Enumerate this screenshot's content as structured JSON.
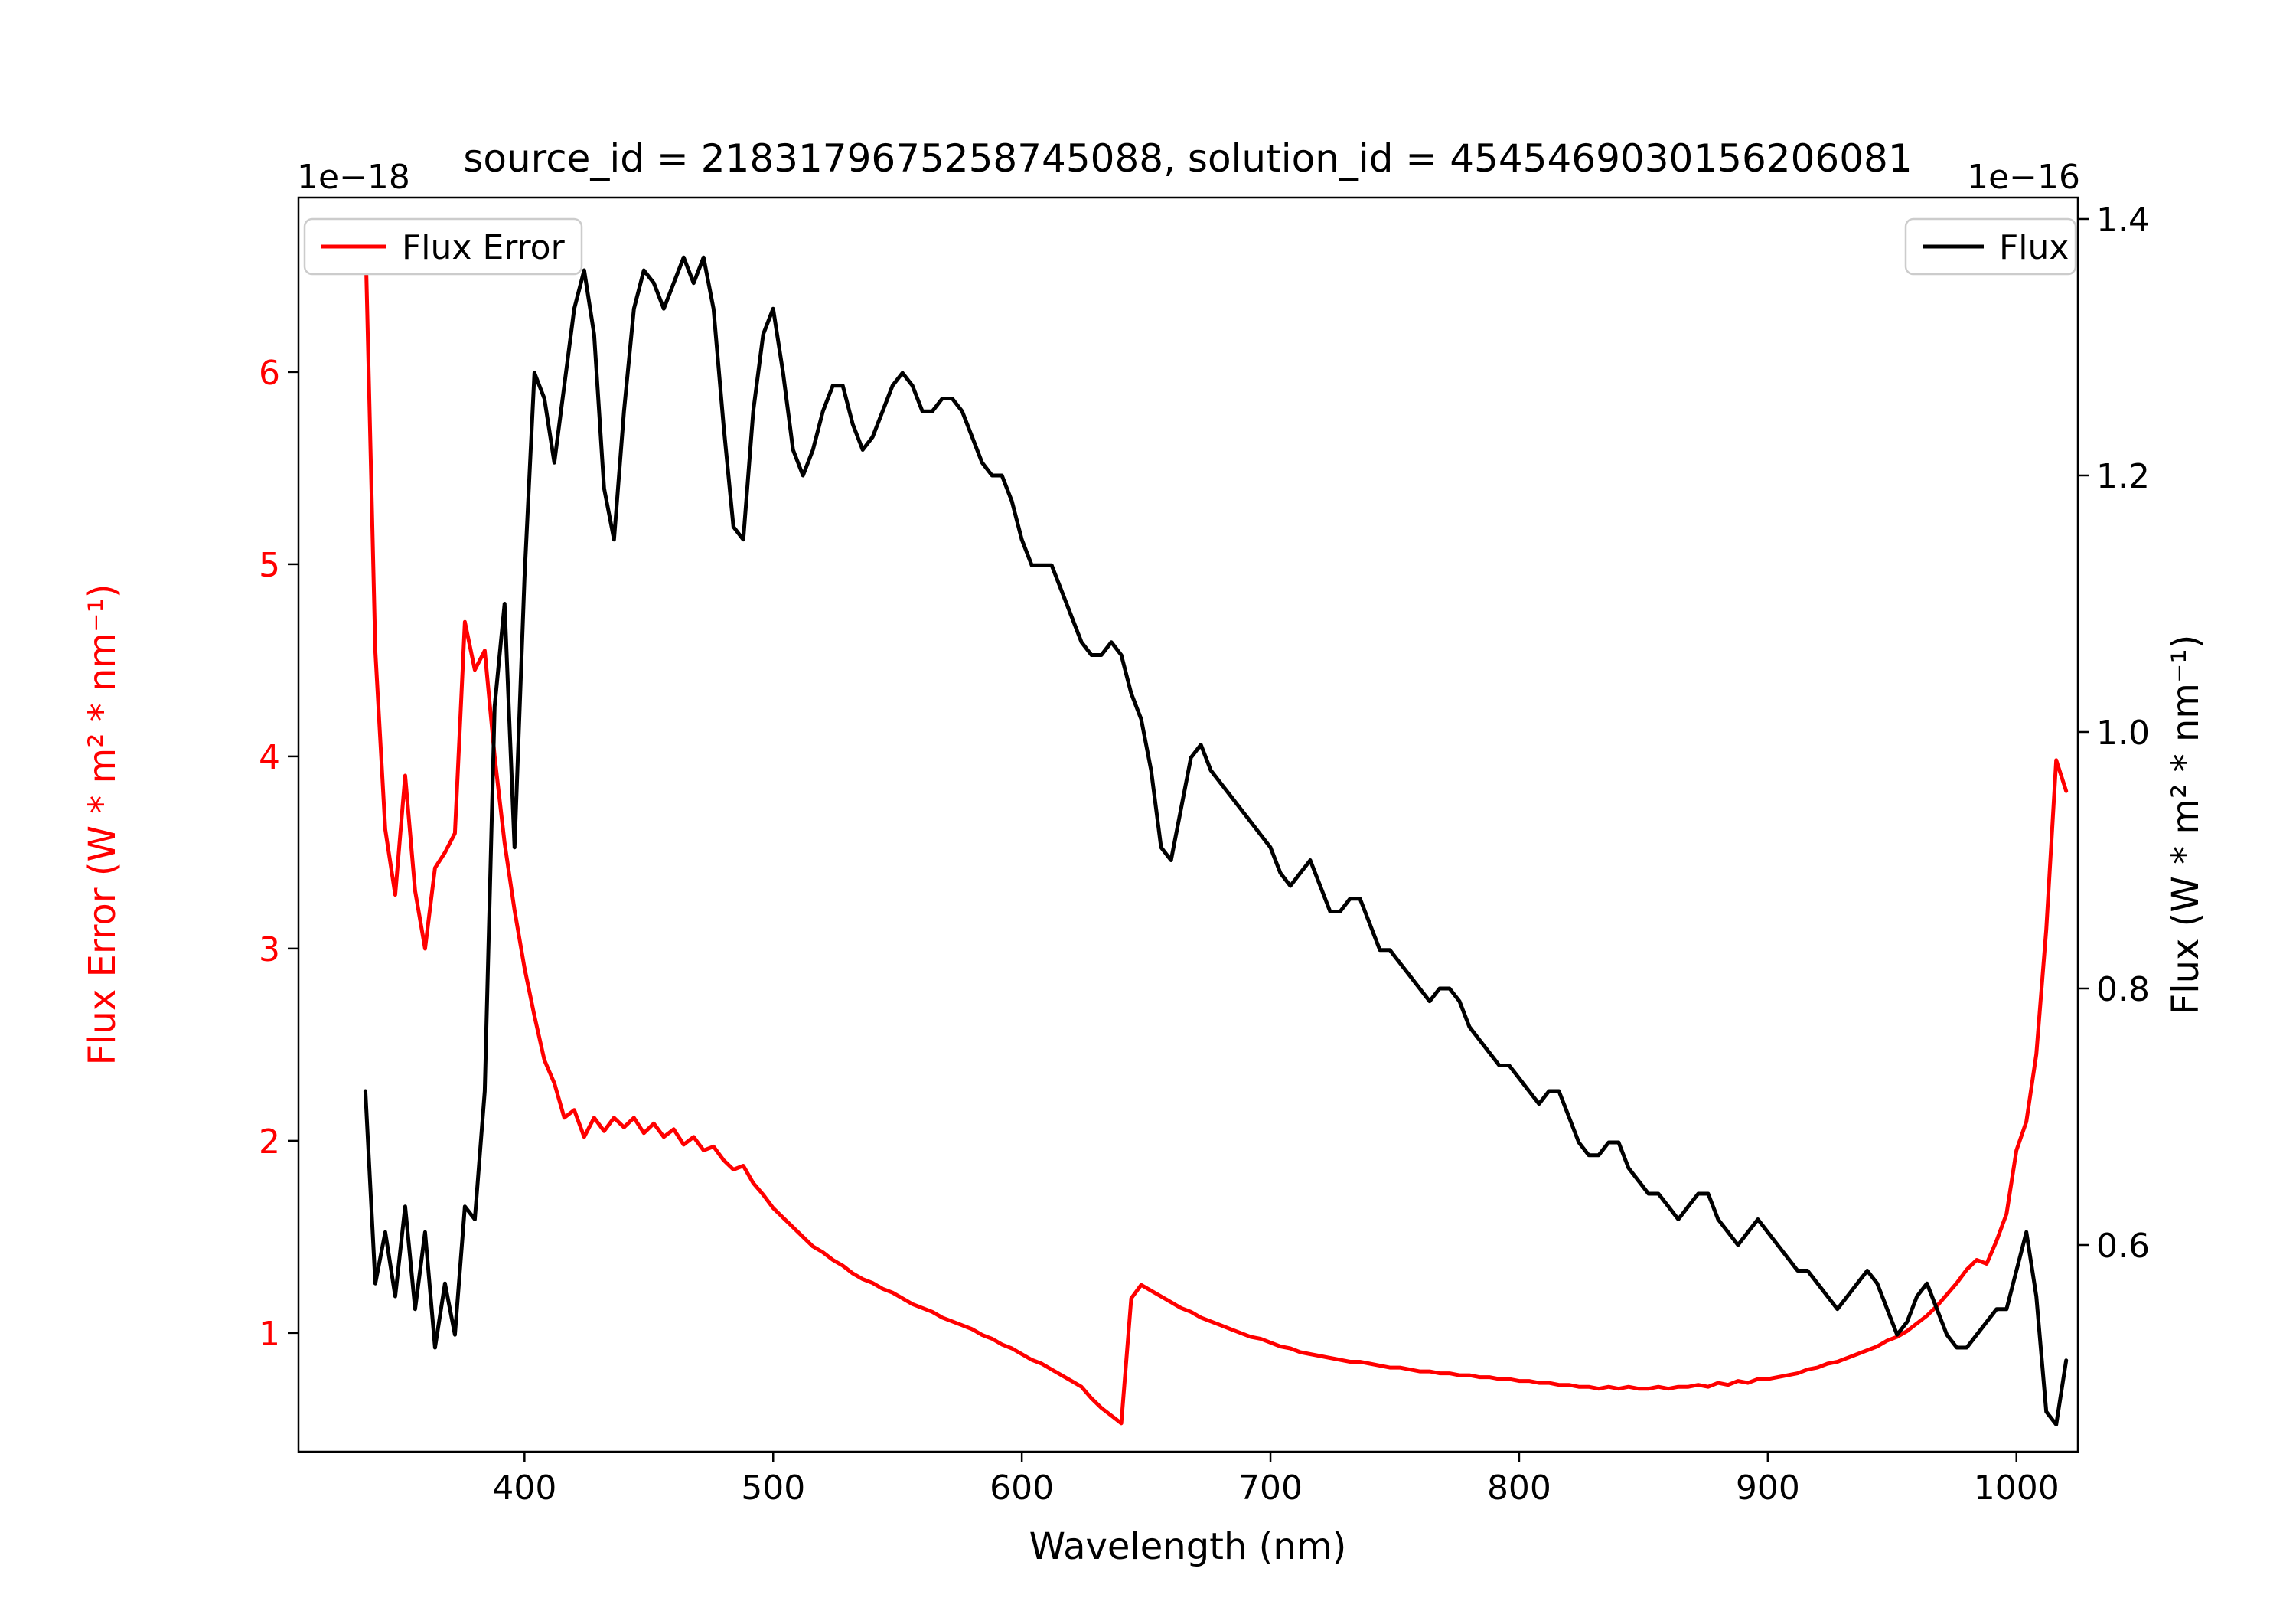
{
  "chart_data": {
    "type": "line",
    "title": "source_id = 2183179675258745088, solution_id = 4545469030156206081",
    "xlabel": "Wavelength (nm)",
    "ylabel_left": "Flux Error (W * m² * nm⁻¹)",
    "ylabel_right": "Flux (W * m² * nm⁻¹)",
    "offset_text_left": "1e−18",
    "offset_text_right": "1e−16",
    "xlim": [
      309.1,
      1024.7
    ],
    "ylim_left": [
      0.382,
      6.908
    ],
    "ylim_right": [
      0.4388,
      1.4167
    ],
    "x_ticks": [
      400,
      500,
      600,
      700,
      800,
      900,
      1000
    ],
    "y_ticks_left": [
      "1",
      "2",
      "3",
      "4",
      "5",
      "6"
    ],
    "y_ticks_right": [
      "0.6",
      "0.8",
      "1.0",
      "1.2",
      "1.4"
    ],
    "grid": false,
    "x_units": "nm",
    "left_units_scale": "1e-18",
    "right_units_scale": "1e-16",
    "x": [
      336,
      340,
      344,
      348,
      352,
      356,
      360,
      364,
      368,
      372,
      376,
      380,
      384,
      388,
      392,
      396,
      400,
      404,
      408,
      412,
      416,
      420,
      424,
      428,
      432,
      436,
      440,
      444,
      448,
      452,
      456,
      460,
      464,
      468,
      472,
      476,
      480,
      484,
      488,
      492,
      496,
      500,
      504,
      508,
      512,
      516,
      520,
      524,
      528,
      532,
      536,
      540,
      544,
      548,
      552,
      556,
      560,
      564,
      568,
      572,
      576,
      580,
      584,
      588,
      592,
      596,
      600,
      604,
      608,
      612,
      616,
      620,
      624,
      628,
      632,
      636,
      640,
      644,
      648,
      652,
      656,
      660,
      664,
      668,
      672,
      676,
      680,
      684,
      688,
      692,
      696,
      700,
      704,
      708,
      712,
      716,
      720,
      724,
      728,
      732,
      736,
      740,
      744,
      748,
      752,
      756,
      760,
      764,
      768,
      772,
      776,
      780,
      784,
      788,
      792,
      796,
      800,
      804,
      808,
      812,
      816,
      820,
      824,
      828,
      832,
      836,
      840,
      844,
      848,
      852,
      856,
      860,
      864,
      868,
      872,
      876,
      880,
      884,
      888,
      892,
      896,
      900,
      904,
      908,
      912,
      916,
      920,
      924,
      928,
      932,
      936,
      940,
      944,
      948,
      952,
      956,
      960,
      964,
      968,
      972,
      976,
      980,
      984,
      988,
      992,
      996,
      1000,
      1004,
      1008,
      1012,
      1016,
      1020
    ],
    "series": [
      {
        "name": "Flux Error",
        "axis": "left",
        "color": "#ff0000",
        "legend_loc": "upper left",
        "values": [
          6.72,
          4.55,
          3.62,
          3.28,
          3.9,
          3.3,
          3.0,
          3.42,
          3.5,
          3.6,
          4.7,
          4.45,
          4.55,
          4.0,
          3.55,
          3.2,
          2.9,
          2.65,
          2.42,
          2.3,
          2.12,
          2.16,
          2.02,
          2.12,
          2.05,
          2.12,
          2.07,
          2.12,
          2.04,
          2.09,
          2.02,
          2.06,
          1.98,
          2.02,
          1.95,
          1.97,
          1.9,
          1.85,
          1.87,
          1.78,
          1.72,
          1.65,
          1.6,
          1.55,
          1.5,
          1.45,
          1.42,
          1.38,
          1.35,
          1.31,
          1.28,
          1.26,
          1.23,
          1.21,
          1.18,
          1.15,
          1.13,
          1.11,
          1.08,
          1.06,
          1.04,
          1.02,
          0.99,
          0.97,
          0.94,
          0.92,
          0.89,
          0.86,
          0.84,
          0.81,
          0.78,
          0.75,
          0.72,
          0.66,
          0.61,
          0.57,
          0.53,
          1.18,
          1.25,
          1.22,
          1.19,
          1.16,
          1.13,
          1.11,
          1.08,
          1.06,
          1.04,
          1.02,
          1.0,
          0.98,
          0.97,
          0.95,
          0.93,
          0.92,
          0.9,
          0.89,
          0.88,
          0.87,
          0.86,
          0.85,
          0.85,
          0.84,
          0.83,
          0.82,
          0.82,
          0.81,
          0.8,
          0.8,
          0.79,
          0.79,
          0.78,
          0.78,
          0.77,
          0.77,
          0.76,
          0.76,
          0.75,
          0.75,
          0.74,
          0.74,
          0.73,
          0.73,
          0.72,
          0.72,
          0.71,
          0.72,
          0.71,
          0.72,
          0.71,
          0.71,
          0.72,
          0.71,
          0.72,
          0.72,
          0.73,
          0.72,
          0.74,
          0.73,
          0.75,
          0.74,
          0.76,
          0.76,
          0.77,
          0.78,
          0.79,
          0.81,
          0.82,
          0.84,
          0.85,
          0.87,
          0.89,
          0.91,
          0.93,
          0.96,
          0.98,
          1.01,
          1.05,
          1.09,
          1.14,
          1.2,
          1.26,
          1.33,
          1.38,
          1.36,
          1.48,
          1.62,
          1.95,
          2.1,
          2.45,
          3.1,
          3.98,
          3.82
        ]
      },
      {
        "name": "Flux",
        "axis": "right",
        "color": "#000000",
        "legend_loc": "upper right",
        "values": [
          0.72,
          0.57,
          0.61,
          0.56,
          0.63,
          0.55,
          0.61,
          0.52,
          0.57,
          0.53,
          0.63,
          0.62,
          0.72,
          1.02,
          1.1,
          0.91,
          1.12,
          1.28,
          1.26,
          1.21,
          1.27,
          1.33,
          1.36,
          1.31,
          1.19,
          1.15,
          1.25,
          1.33,
          1.36,
          1.35,
          1.33,
          1.35,
          1.37,
          1.35,
          1.37,
          1.33,
          1.24,
          1.16,
          1.15,
          1.25,
          1.31,
          1.33,
          1.28,
          1.22,
          1.2,
          1.22,
          1.25,
          1.27,
          1.27,
          1.24,
          1.22,
          1.23,
          1.25,
          1.27,
          1.28,
          1.27,
          1.25,
          1.25,
          1.26,
          1.26,
          1.25,
          1.23,
          1.21,
          1.2,
          1.2,
          1.18,
          1.15,
          1.13,
          1.13,
          1.13,
          1.11,
          1.09,
          1.07,
          1.06,
          1.06,
          1.07,
          1.06,
          1.03,
          1.01,
          0.97,
          0.91,
          0.9,
          0.94,
          0.98,
          0.99,
          0.97,
          0.96,
          0.95,
          0.94,
          0.93,
          0.92,
          0.91,
          0.89,
          0.88,
          0.89,
          0.9,
          0.88,
          0.86,
          0.86,
          0.87,
          0.87,
          0.85,
          0.83,
          0.83,
          0.82,
          0.81,
          0.8,
          0.79,
          0.8,
          0.8,
          0.79,
          0.77,
          0.76,
          0.75,
          0.74,
          0.74,
          0.73,
          0.72,
          0.71,
          0.72,
          0.72,
          0.7,
          0.68,
          0.67,
          0.67,
          0.68,
          0.68,
          0.66,
          0.65,
          0.64,
          0.64,
          0.63,
          0.62,
          0.63,
          0.64,
          0.64,
          0.62,
          0.61,
          0.6,
          0.61,
          0.62,
          0.61,
          0.6,
          0.59,
          0.58,
          0.58,
          0.57,
          0.56,
          0.55,
          0.56,
          0.57,
          0.58,
          0.57,
          0.55,
          0.53,
          0.54,
          0.56,
          0.57,
          0.55,
          0.53,
          0.52,
          0.52,
          0.53,
          0.54,
          0.55,
          0.55,
          0.58,
          0.61,
          0.56,
          0.47,
          0.46,
          0.51
        ]
      }
    ]
  }
}
